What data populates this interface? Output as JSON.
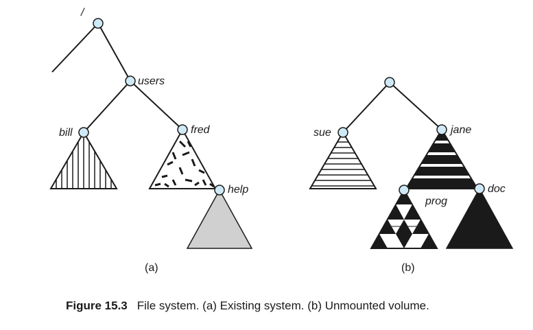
{
  "diagram_a": {
    "root_label": "/",
    "users_label": "users",
    "bill_label": "bill",
    "fred_label": "fred",
    "help_label": "help",
    "sublabel": "(a)"
  },
  "diagram_b": {
    "sue_label": "sue",
    "jane_label": "jane",
    "prog_label": "prog",
    "doc_label": "doc",
    "sublabel": "(b)"
  },
  "caption": {
    "number": "Figure 15.3",
    "text": "File system. (a) Existing system. (b) Unmounted volume."
  },
  "colors": {
    "node_fill": "#cfe9f6",
    "help_fill": "#d0d0d0",
    "ink": "#1a1a1a"
  }
}
